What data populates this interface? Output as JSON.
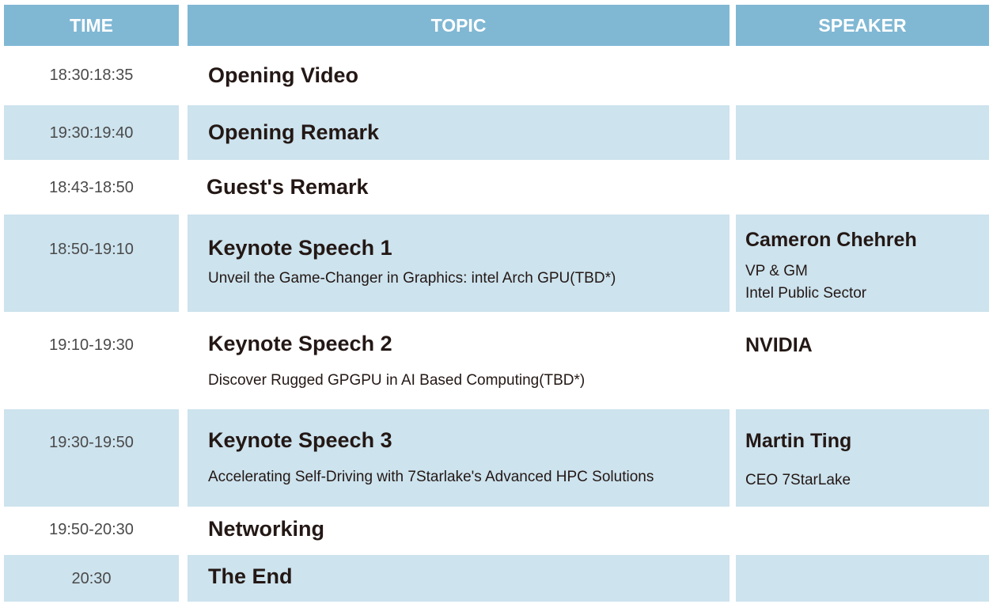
{
  "header": {
    "time": "TIME",
    "topic": "TOPIC",
    "speaker": "SPEAKER"
  },
  "colors": {
    "header": "#80b8d4",
    "row_alt": "#cde3ee",
    "header_text": "#ffffff"
  },
  "rows": [
    {
      "time": "18:30:18:35",
      "title": "Opening Video",
      "subtitle": "",
      "speaker": "",
      "speaker_lines": []
    },
    {
      "time": "19:30:19:40",
      "title": "Opening Remark",
      "subtitle": "",
      "speaker": "",
      "speaker_lines": []
    },
    {
      "time": "18:43-18:50",
      "title": "Guest's Remark",
      "subtitle": "",
      "speaker": "",
      "speaker_lines": []
    },
    {
      "time": "18:50-19:10",
      "title": "Keynote Speech 1",
      "subtitle": "Unveil the Game-Changer in Graphics: intel Arch GPU(TBD*)",
      "speaker": "Cameron Chehreh",
      "speaker_lines": [
        "VP & GM",
        "Intel Public Sector"
      ]
    },
    {
      "time": "19:10-19:30",
      "title": "Keynote Speech 2",
      "subtitle": "Discover Rugged GPGPU in AI Based Computing(TBD*)",
      "speaker": "NVIDIA",
      "speaker_lines": []
    },
    {
      "time": "19:30-19:50",
      "title": "Keynote Speech 3",
      "subtitle": "Accelerating Self-Driving with 7Starlake's Advanced HPC Solutions",
      "speaker": "Martin Ting",
      "speaker_lines": [
        "CEO 7StarLake"
      ]
    },
    {
      "time": "19:50-20:30",
      "title": "Networking",
      "subtitle": "",
      "speaker": "",
      "speaker_lines": []
    },
    {
      "time": "20:30",
      "title": "The End",
      "subtitle": "",
      "speaker": "",
      "speaker_lines": []
    }
  ]
}
